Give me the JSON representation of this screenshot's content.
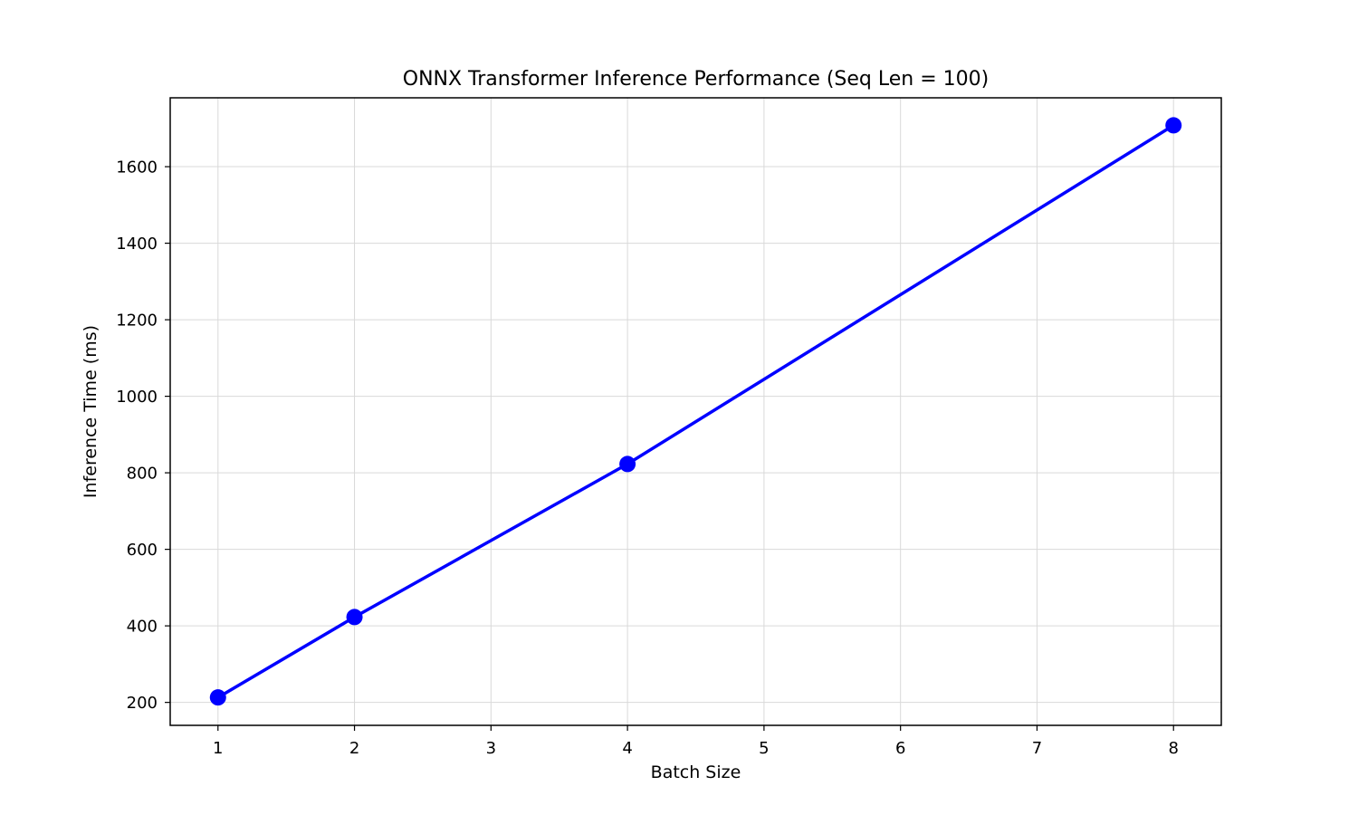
{
  "chart_data": {
    "type": "line",
    "title": "ONNX Transformer Inference Performance (Seq Len = 100)",
    "xlabel": "Batch Size",
    "ylabel": "Inference Time (ms)",
    "xlim": [
      0.65,
      8.35
    ],
    "ylim": [
      140,
      1780
    ],
    "xticks": [
      1,
      2,
      3,
      4,
      5,
      6,
      7,
      8
    ],
    "yticks": [
      200,
      400,
      600,
      800,
      1000,
      1200,
      1400,
      1600
    ],
    "grid": true,
    "series": [
      {
        "name": "Inference Time",
        "color": "#0000ff",
        "marker": "circle",
        "x": [
          1,
          2,
          4,
          8
        ],
        "values": [
          213,
          423,
          823,
          1708
        ]
      }
    ]
  }
}
